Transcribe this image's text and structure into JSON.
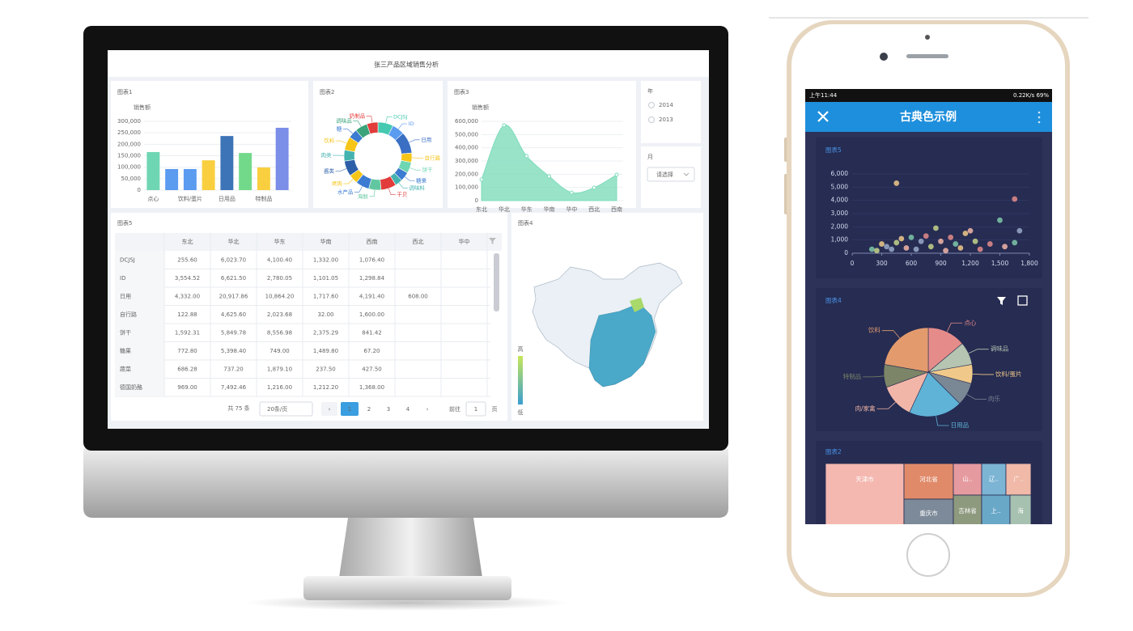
{
  "desktop": {
    "title": "张三产品区域销售分析",
    "chart1": {
      "type": "bar",
      "title": "图表1",
      "y_label": "销售额",
      "categories": [
        "点心",
        null,
        "饮料/蛋片",
        null,
        "日用品",
        null,
        "特制品",
        null
      ],
      "values": [
        166000,
        92000,
        92000,
        130000,
        236000,
        162000,
        99000,
        272000
      ],
      "colors": [
        "#6fd6b3",
        "#5b9bf0",
        "#5b9bf0",
        "#f9cf3f",
        "#3d74b8",
        "#72d98a",
        "#f9cf3f",
        "#7b8ee8"
      ],
      "ylim": [
        0,
        300000
      ],
      "yticks": [
        0,
        {
          "value": 50000,
          "label": "50,000"
        },
        {
          "value": 100000,
          "label": "100,000"
        },
        {
          "value": 150000,
          "label": "150,000"
        },
        {
          "value": 200000,
          "label": "200,000"
        },
        {
          "value": 250000,
          "label": "250,000"
        },
        {
          "value": 300000,
          "label": "300,000"
        }
      ]
    },
    "chart2": {
      "type": "donut",
      "title": "图表2",
      "categories": [
        "DCJSJ",
        "ID",
        "日用",
        "自行路",
        "饼干",
        "糖果",
        "调味料",
        "干贝",
        "海鲜",
        "水产品",
        "烤肉",
        "酱类",
        "肉类",
        "饮料",
        "糖",
        "调味品",
        "奶制品"
      ],
      "values": [
        25,
        20,
        35,
        15,
        18,
        15,
        12,
        25,
        20,
        22,
        15,
        25,
        18,
        22,
        15,
        20,
        18
      ],
      "colors": [
        "#45c9b0",
        "#5b9bf0",
        "#3a6fc4",
        "#f5c518",
        "#6fd6b3",
        "#3b7bd1",
        "#44b3b0",
        "#e23b3b",
        "#62c7a0",
        "#3b7bd1",
        "#f5c518",
        "#2c5fa8",
        "#44b3b0",
        "#f5c518",
        "#3b7bd1",
        "#3aa37a",
        "#e23b3b"
      ]
    },
    "chart3": {
      "type": "area",
      "title": "图表3",
      "y_label": "销售额",
      "categories": [
        "东北",
        "华北",
        "华东",
        "华南",
        "华中",
        "西北",
        "西南"
      ],
      "values": [
        160000,
        570000,
        337000,
        184000,
        61000,
        98000,
        196000
      ],
      "color": "#7fdcbc",
      "ylim": [
        0,
        600000
      ],
      "yticks": [
        0,
        {
          "value": 100000,
          "label": "100,000"
        },
        {
          "value": 200000,
          "label": "200,000"
        },
        {
          "value": 300000,
          "label": "300,000"
        },
        {
          "value": 400000,
          "label": "400,000"
        },
        {
          "value": 500000,
          "label": "500,000"
        },
        {
          "value": 600000,
          "label": "600,000"
        }
      ]
    },
    "filters": {
      "year": {
        "label": "年",
        "options": [
          "2014",
          "2013"
        ]
      },
      "month": {
        "label": "月",
        "placeholder": "请选择"
      }
    },
    "table": {
      "title": "图表5",
      "columns": [
        "东北",
        "华北",
        "华东",
        "华南",
        "西南",
        "西北",
        "华中"
      ],
      "rows": [
        [
          "DCJSJ",
          "255.60",
          "6,023.70",
          "4,100.40",
          "1,332.00",
          "1,076.40"
        ],
        [
          "ID",
          "3,554.52",
          "6,621.50",
          "2,780.05",
          "1,101.05",
          "1,298.84"
        ],
        [
          "日用",
          "4,332.00",
          "20,917.86",
          "10,864.20",
          "1,717.60",
          "4,191.40",
          "608.00"
        ],
        [
          "自行路",
          "122.88",
          "4,625.60",
          "2,023.68",
          "32.00",
          "1,600.00"
        ],
        [
          "饼干",
          "1,592.31",
          "5,849.78",
          "8,556.98",
          "2,375.29",
          "841.42"
        ],
        [
          "糖果",
          "772.80",
          "5,398.40",
          "749.00",
          "1,489.80",
          "67.20"
        ],
        [
          "蔬菜",
          "686.28",
          "737.20",
          "1,879.10",
          "237.50",
          "427.50"
        ],
        [
          "德国奶酪",
          "969.00",
          "7,492.46",
          "1,216.00",
          "1,212.20",
          "1,368.00"
        ]
      ],
      "pagination": {
        "total": "共 75 条",
        "page_size": "20条/页",
        "pages": [
          "1",
          "2",
          "3",
          "4"
        ],
        "goto": "前往",
        "goto_page": "1",
        "page_unit": "页"
      }
    },
    "map": {
      "title": "图表4",
      "legend_high": "高",
      "legend_low": "低"
    }
  },
  "phone": {
    "status_time": "上午11:44",
    "status_right": "0.22K/s 69%",
    "header": "古典色示例",
    "scatter": {
      "type": "scatter",
      "title": "图表5",
      "x": [
        450,
        1650,
        1500,
        1700,
        1200,
        850,
        1150,
        1000,
        600,
        700,
        900,
        450,
        300,
        1400,
        1650,
        350,
        550,
        800,
        1100,
        1300,
        200,
        650,
        950,
        1250,
        500,
        750,
        1050,
        400,
        1550,
        250
      ],
      "values": [
        5300,
        4100,
        2500,
        1700,
        1700,
        1900,
        1500,
        1200,
        1200,
        900,
        900,
        800,
        700,
        700,
        800,
        500,
        400,
        500,
        400,
        300,
        300,
        300,
        200,
        900,
        1100,
        1300,
        700,
        300,
        500,
        200
      ],
      "palette": [
        "#f0c98a",
        "#e58c8a",
        "#7fc8a9",
        "#9aa9c9",
        "#f2b6a8",
        "#c6d38a"
      ],
      "xlim": [
        0,
        1800
      ],
      "xticks": [
        0,
        300,
        600,
        900,
        {
          "value": 1200,
          "label": "1,200"
        },
        {
          "value": 1500,
          "label": "1,500"
        },
        {
          "value": 1800,
          "label": "1,800"
        }
      ],
      "ylim": [
        0,
        6000
      ],
      "yticks": [
        0,
        {
          "value": 1000,
          "label": "1,000"
        },
        {
          "value": 2000,
          "label": "2,000"
        },
        {
          "value": 3000,
          "label": "3,000"
        },
        {
          "value": 4000,
          "label": "4,000"
        },
        {
          "value": 5000,
          "label": "5,000"
        },
        {
          "value": 6000,
          "label": "6,000"
        }
      ]
    },
    "pie": {
      "type": "pie",
      "title": "图表4",
      "categories": [
        "点心",
        "调味品",
        "饮料/蛋片",
        "肉乐",
        "日用品",
        "肉/家禽",
        "特制品",
        "饮料"
      ],
      "values": [
        50,
        30,
        25,
        30,
        70,
        45,
        30,
        80
      ],
      "colors": [
        "#e58c8a",
        "#b5c5b1",
        "#f0c98a",
        "#7a8795",
        "#5fb3d6",
        "#f2b6a8",
        "#7c8567",
        "#e39b6e"
      ]
    },
    "treemap": {
      "type": "treemap",
      "title": "图表2",
      "labels": [
        "天津市",
        "河北省",
        "重庆市",
        "山..",
        "吉林省",
        "辽..",
        "上..",
        "广..",
        "海"
      ],
      "colors": [
        "#f4b8b0",
        "#e08a6a",
        "#7d8a99",
        "#e59aa0",
        "#8e9a7e",
        "#7cb4d4",
        "#6aa8c8",
        "#f0b9a8",
        "#a7c1b0"
      ]
    }
  }
}
